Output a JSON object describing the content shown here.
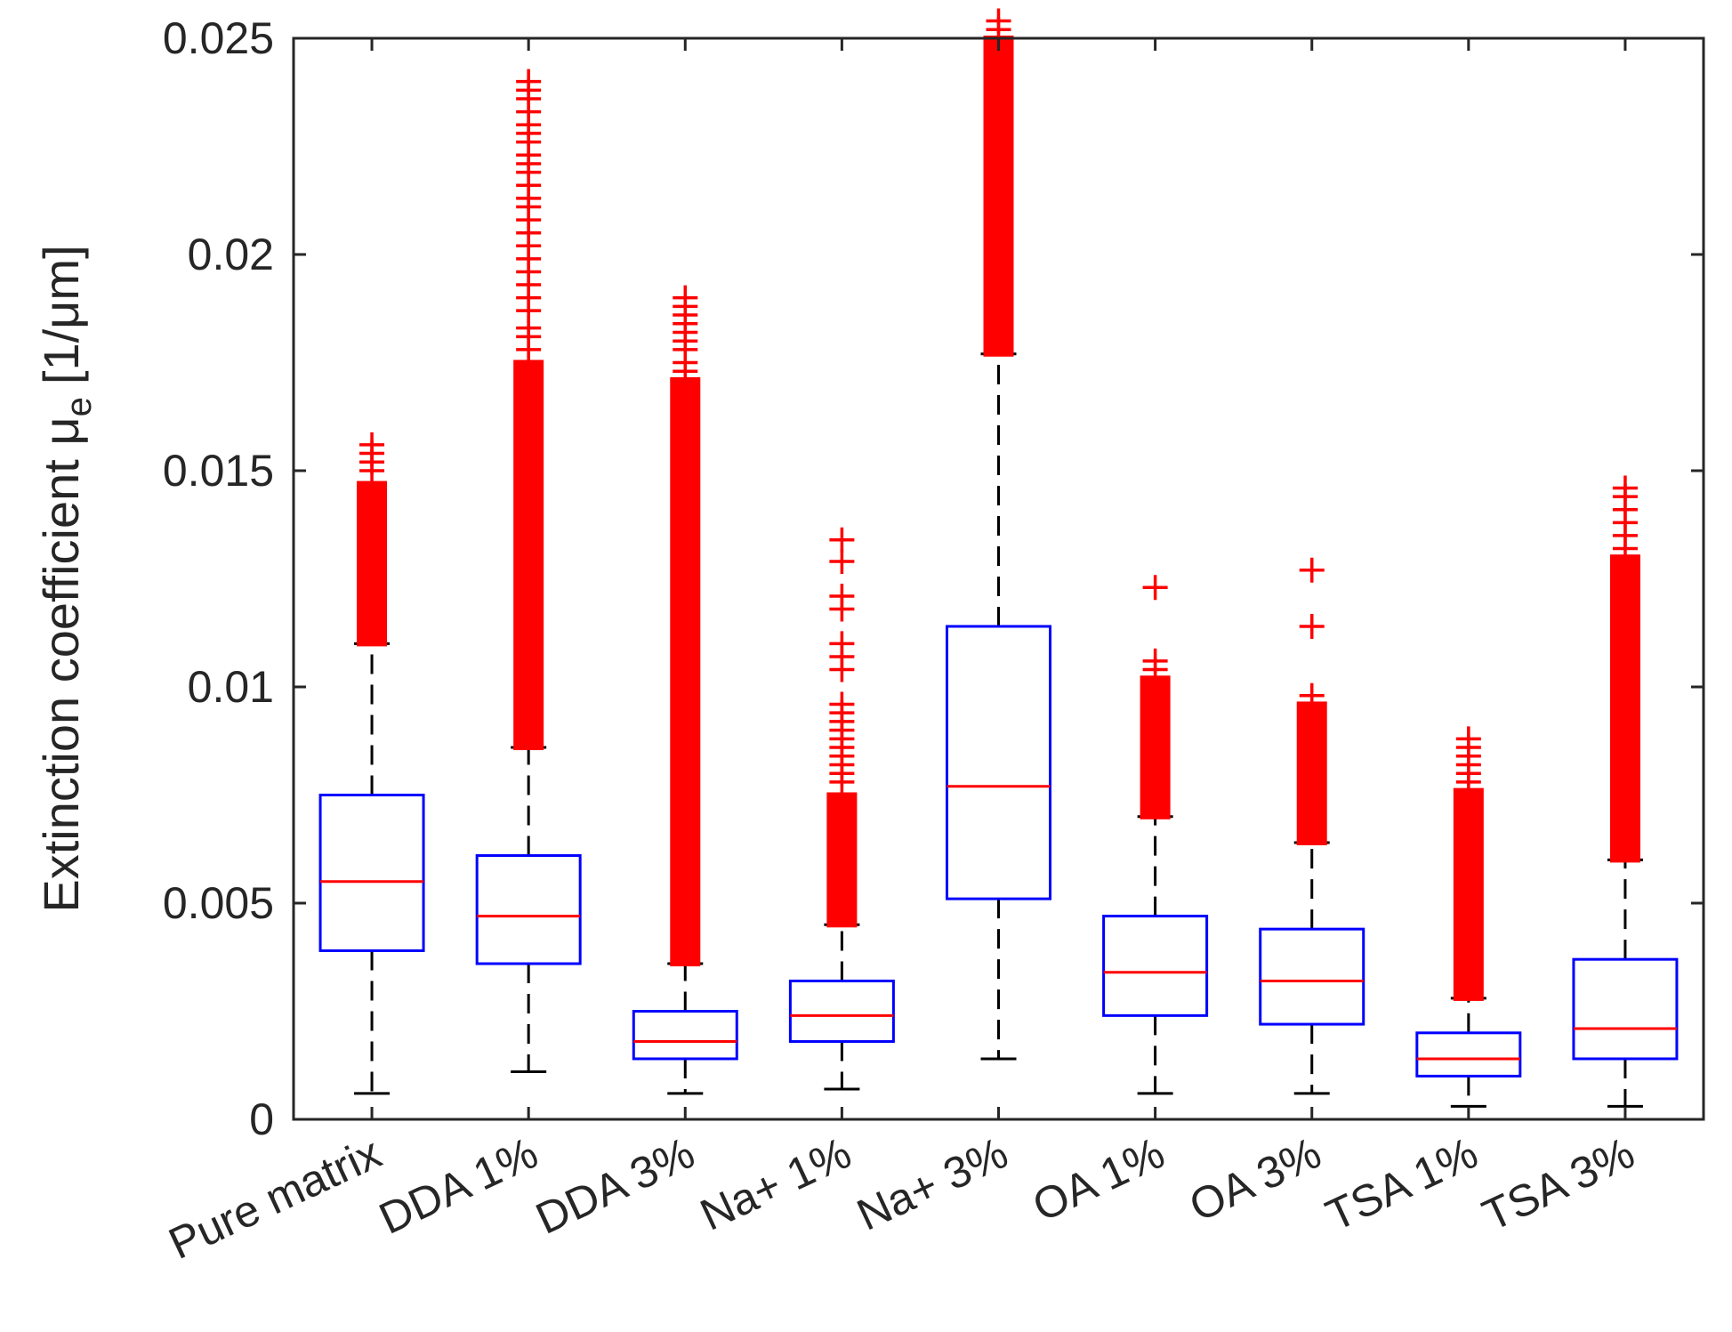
{
  "chart_data": {
    "type": "boxplot",
    "title": "",
    "xlabel": "",
    "ylabel_main": "Extinction coefficient μ",
    "ylabel_sub": "e",
    "ylabel_unit": "[1/μm]",
    "ylim": [
      0,
      0.025
    ],
    "yticks": [
      0,
      0.005,
      0.01,
      0.015,
      0.02,
      0.025
    ],
    "ytick_labels": [
      "0",
      "0.005",
      "0.01",
      "0.015",
      "0.02",
      "0.025"
    ],
    "grid": false,
    "colors": {
      "box": "#0000ff",
      "median": "#ff0000",
      "whisker": "#000000",
      "outlier": "#ff0000",
      "axis": "#262626"
    },
    "categories": [
      "Pure matrix",
      "DDA 1%",
      "DDA 3%",
      "Na+ 1%",
      "Na+ 3%",
      "OA 1%",
      "OA 3%",
      "TSA 1%",
      "TSA 3%"
    ],
    "boxes": [
      {
        "q1": 0.0039,
        "median": 0.0055,
        "q3": 0.0075,
        "whisker_low": 0.0006,
        "whisker_high": 0.011,
        "outlier_dense": [
          0.011,
          0.0147
        ],
        "outliers": [
          0.015,
          0.0152,
          0.0154,
          0.0156
        ]
      },
      {
        "q1": 0.0036,
        "median": 0.0047,
        "q3": 0.0061,
        "whisker_low": 0.0011,
        "whisker_high": 0.0086,
        "outlier_dense": [
          0.0086,
          0.0175
        ],
        "outliers": [
          0.0178,
          0.0181,
          0.0183,
          0.0187,
          0.019,
          0.0193,
          0.0196,
          0.0199,
          0.0202,
          0.0205,
          0.0208,
          0.0211,
          0.0213,
          0.0216,
          0.0219,
          0.0221,
          0.0223,
          0.0226,
          0.0228,
          0.023,
          0.0233,
          0.0236,
          0.0238,
          0.024
        ]
      },
      {
        "q1": 0.0014,
        "median": 0.0018,
        "q3": 0.0025,
        "whisker_low": 0.0006,
        "whisker_high": 0.0036,
        "outlier_dense": [
          0.0036,
          0.0171
        ],
        "outliers": [
          0.0173,
          0.0175,
          0.0178,
          0.018,
          0.0182,
          0.0184,
          0.0186,
          0.0188,
          0.019
        ]
      },
      {
        "q1": 0.0018,
        "median": 0.0024,
        "q3": 0.0032,
        "whisker_low": 0.0007,
        "whisker_high": 0.0045,
        "outlier_dense": [
          0.0045,
          0.0075
        ],
        "outliers": [
          0.0078,
          0.008,
          0.0082,
          0.0084,
          0.0086,
          0.0088,
          0.009,
          0.0092,
          0.0094,
          0.0096,
          0.0104,
          0.0107,
          0.011,
          0.0118,
          0.0121,
          0.0129,
          0.0134
        ]
      },
      {
        "q1": 0.0051,
        "median": 0.0077,
        "q3": 0.0114,
        "whisker_low": 0.0014,
        "whisker_high": 0.0177,
        "outlier_dense": [
          0.0177,
          0.025
        ],
        "outliers": [
          0.0252,
          0.0254
        ]
      },
      {
        "q1": 0.0024,
        "median": 0.0034,
        "q3": 0.0047,
        "whisker_low": 0.0006,
        "whisker_high": 0.007,
        "outlier_dense": [
          0.007,
          0.0102
        ],
        "outliers": [
          0.0104,
          0.0106,
          0.0123
        ]
      },
      {
        "q1": 0.0022,
        "median": 0.0032,
        "q3": 0.0044,
        "whisker_low": 0.0006,
        "whisker_high": 0.0064,
        "outlier_dense": [
          0.0064,
          0.0096
        ],
        "outliers": [
          0.0098,
          0.0114,
          0.0127
        ]
      },
      {
        "q1": 0.001,
        "median": 0.0014,
        "q3": 0.002,
        "whisker_low": 0.0003,
        "whisker_high": 0.0028,
        "outlier_dense": [
          0.0028,
          0.0076
        ],
        "outliers": [
          0.0078,
          0.008,
          0.0082,
          0.0084,
          0.0086,
          0.0088
        ]
      },
      {
        "q1": 0.0014,
        "median": 0.0021,
        "q3": 0.0037,
        "whisker_low": 0.0003,
        "whisker_high": 0.006,
        "outlier_dense": [
          0.006,
          0.013
        ],
        "outliers": [
          0.0132,
          0.0135,
          0.0138,
          0.0141,
          0.0144,
          0.0146
        ]
      }
    ]
  }
}
